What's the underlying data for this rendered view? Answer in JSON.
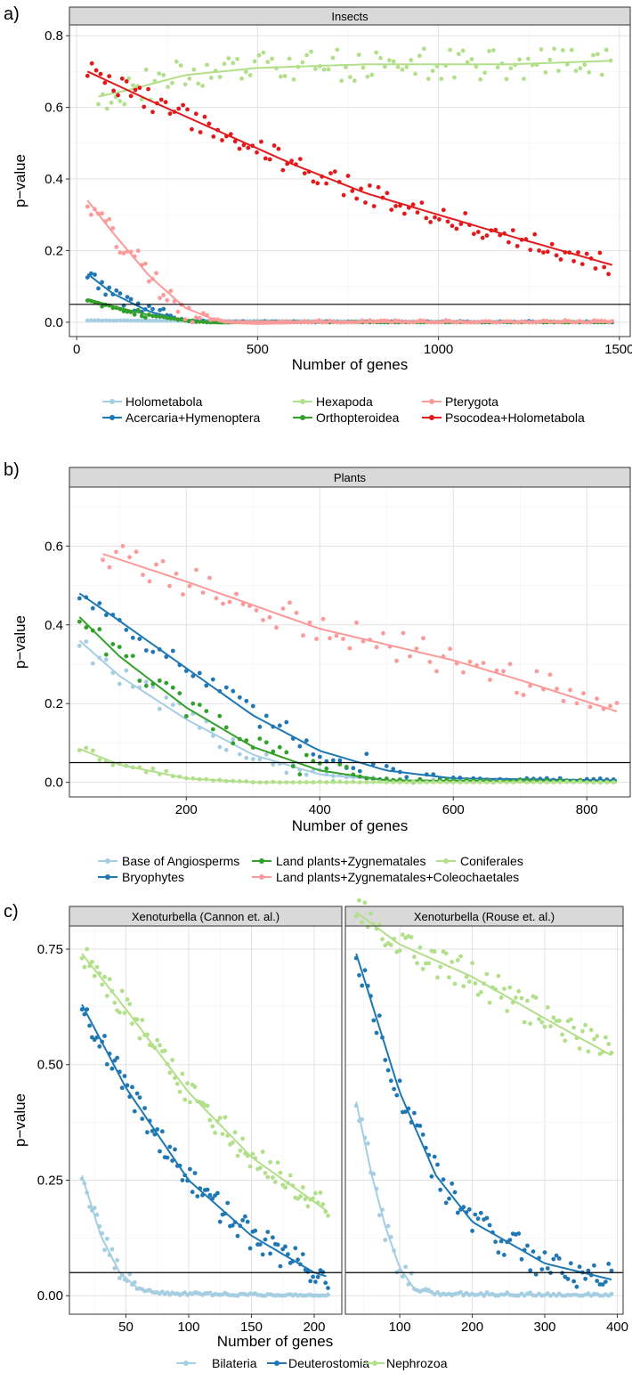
{
  "figure": {
    "panel_a": "a)",
    "panel_b": "b)",
    "panel_c": "c)"
  },
  "colors": {
    "light_blue": "#a6cee3",
    "dark_blue": "#1f78b4",
    "light_green": "#b2df8a",
    "dark_green": "#33a02c",
    "pink": "#fb9a99",
    "red": "#e31a1c",
    "strip": "#d9d9d9",
    "grid": "#ebebeb"
  },
  "chart_data": [
    {
      "id": "insects",
      "type": "scatter",
      "title": "Insects",
      "xlabel": "Number of genes",
      "ylabel": "p−value",
      "xlim": [
        -20,
        1530
      ],
      "ylim": [
        -0.04,
        0.83
      ],
      "xticks": [
        0,
        500,
        1000,
        1500
      ],
      "yticks": [
        0.0,
        0.2,
        0.4,
        0.6,
        0.8
      ],
      "ytick_labels": [
        "0.0",
        "0.2",
        "0.4",
        "0.6",
        "0.8"
      ],
      "hline": 0.05,
      "legend": {
        "position": "bottom",
        "columns": 3,
        "entries": [
          "Holometabola",
          "Acercaria+Hymenoptera",
          "Hexapoda",
          "Orthopteroidea",
          "Pterygota",
          "Psocodea+Holometabola"
        ]
      },
      "series": [
        {
          "name": "Holometabola",
          "color": "#a6cee3",
          "x_start": 30,
          "x_end": 1480,
          "x_step": 10,
          "trend": [
            [
              30,
              0.005
            ],
            [
              1480,
              0.0
            ]
          ],
          "noise": 0.002
        },
        {
          "name": "Acercaria+Hymenoptera",
          "color": "#1f78b4",
          "x_start": 30,
          "x_end": 1480,
          "x_step": 10,
          "trend": [
            [
              30,
              0.135
            ],
            [
              100,
              0.08
            ],
            [
              200,
              0.03
            ],
            [
              300,
              0.005
            ],
            [
              400,
              -0.002
            ],
            [
              500,
              0.0
            ],
            [
              1480,
              0.0
            ]
          ],
          "noise": 0.02
        },
        {
          "name": "Hexapoda",
          "color": "#b2df8a",
          "x_start": 60,
          "x_end": 1480,
          "x_step": 12,
          "trend": [
            [
              60,
              0.63
            ],
            [
              150,
              0.65
            ],
            [
              300,
              0.69
            ],
            [
              500,
              0.71
            ],
            [
              800,
              0.72
            ],
            [
              1200,
              0.72
            ],
            [
              1480,
              0.73
            ]
          ],
          "noise": 0.045
        },
        {
          "name": "Orthopteroidea",
          "color": "#33a02c",
          "x_start": 30,
          "x_end": 1480,
          "x_step": 10,
          "trend": [
            [
              30,
              0.065
            ],
            [
              100,
              0.045
            ],
            [
              200,
              0.02
            ],
            [
              300,
              0.005
            ],
            [
              400,
              -0.004
            ],
            [
              500,
              0.0
            ],
            [
              1480,
              0.0
            ]
          ],
          "noise": 0.01
        },
        {
          "name": "Pterygota",
          "color": "#fb9a99",
          "x_start": 30,
          "x_end": 1480,
          "x_step": 10,
          "trend": [
            [
              30,
              0.34
            ],
            [
              100,
              0.25
            ],
            [
              200,
              0.13
            ],
            [
              300,
              0.04
            ],
            [
              400,
              0.0
            ],
            [
              500,
              -0.005
            ],
            [
              700,
              0.0
            ],
            [
              1480,
              0.0
            ]
          ],
          "noise": 0.04
        },
        {
          "name": "Psocodea+Holometabola",
          "color": "#e31a1c",
          "x_start": 30,
          "x_end": 1480,
          "x_step": 12,
          "trend": [
            [
              30,
              0.7
            ],
            [
              200,
              0.62
            ],
            [
              400,
              0.53
            ],
            [
              600,
              0.44
            ],
            [
              800,
              0.36
            ],
            [
              1000,
              0.3
            ],
            [
              1200,
              0.24
            ],
            [
              1480,
              0.16
            ]
          ],
          "noise": 0.03
        }
      ]
    },
    {
      "id": "plants",
      "type": "scatter",
      "title": "Plants",
      "xlabel": "Number of genes",
      "ylabel": "p−value",
      "xlim": [
        25,
        865
      ],
      "ylim": [
        -0.037,
        0.75
      ],
      "xticks": [
        200,
        400,
        600,
        800
      ],
      "yticks": [
        0.0,
        0.2,
        0.4,
        0.6
      ],
      "ytick_labels": [
        "0.0",
        "0.2",
        "0.4",
        "0.6"
      ],
      "hline": 0.05,
      "legend": {
        "position": "bottom",
        "columns": 3,
        "entries": [
          "Base of Angiosperms",
          "Bryophytes",
          "Land plants+Zygnematales",
          "Land plants+Zygnematales+Coleochaetales",
          "Coniferales"
        ]
      },
      "series": [
        {
          "name": "Base of Angiosperms",
          "color": "#a6cee3",
          "x_start": 40,
          "x_end": 845,
          "x_step": 10,
          "trend": [
            [
              40,
              0.36
            ],
            [
              100,
              0.27
            ],
            [
              200,
              0.16
            ],
            [
              300,
              0.07
            ],
            [
              400,
              0.02
            ],
            [
              500,
              0.005
            ],
            [
              845,
              0.0
            ]
          ],
          "noise": 0.03
        },
        {
          "name": "Bryophytes",
          "color": "#1f78b4",
          "x_start": 40,
          "x_end": 845,
          "x_step": 10,
          "trend": [
            [
              40,
              0.48
            ],
            [
              100,
              0.41
            ],
            [
              200,
              0.29
            ],
            [
              300,
              0.17
            ],
            [
              400,
              0.08
            ],
            [
              500,
              0.03
            ],
            [
              600,
              0.01
            ],
            [
              845,
              0.005
            ]
          ],
          "noise": 0.03
        },
        {
          "name": "Land plants+Zygnematales",
          "color": "#33a02c",
          "x_start": 40,
          "x_end": 845,
          "x_step": 10,
          "trend": [
            [
              40,
              0.42
            ],
            [
              100,
              0.32
            ],
            [
              200,
              0.19
            ],
            [
              300,
              0.09
            ],
            [
              400,
              0.03
            ],
            [
              500,
              0.005
            ],
            [
              845,
              0.002
            ]
          ],
          "noise": 0.03
        },
        {
          "name": "Land plants+Zygnematales+Coleochaetales",
          "color": "#fb9a99",
          "x_start": 75,
          "x_end": 845,
          "x_step": 10,
          "trend": [
            [
              75,
              0.58
            ],
            [
              200,
              0.51
            ],
            [
              300,
              0.45
            ],
            [
              400,
              0.39
            ],
            [
              500,
              0.35
            ],
            [
              600,
              0.31
            ],
            [
              700,
              0.26
            ],
            [
              845,
              0.18
            ]
          ],
          "noise": 0.04
        },
        {
          "name": "Coniferales",
          "color": "#b2df8a",
          "x_start": 40,
          "x_end": 845,
          "x_step": 10,
          "trend": [
            [
              40,
              0.085
            ],
            [
              100,
              0.045
            ],
            [
              200,
              0.01
            ],
            [
              300,
              0.0
            ],
            [
              845,
              0.0
            ]
          ],
          "noise": 0.01
        }
      ]
    },
    {
      "id": "xeno-cannon",
      "type": "scatter",
      "title": "Xenoturbella (Cannon et. al.)",
      "xlabel": "Number of genes",
      "ylabel": "p−value",
      "xlim": [
        5,
        222
      ],
      "ylim": [
        -0.04,
        0.8
      ],
      "xticks": [
        50,
        100,
        150,
        200
      ],
      "yticks": [
        0.0,
        0.25,
        0.5,
        0.75
      ],
      "ytick_labels": [
        "0.00",
        "0.25",
        "0.50",
        "0.75"
      ],
      "hline": 0.05,
      "series": [
        {
          "name": "Bilateria",
          "color": "#a6cee3",
          "x_start": 15,
          "x_end": 212,
          "x_step": 2,
          "trend": [
            [
              15,
              0.26
            ],
            [
              30,
              0.13
            ],
            [
              45,
              0.05
            ],
            [
              60,
              0.015
            ],
            [
              80,
              0.005
            ],
            [
              212,
              0.0
            ]
          ],
          "noise": 0.02
        },
        {
          "name": "Deuterostomia",
          "color": "#1f78b4",
          "x_start": 15,
          "x_end": 212,
          "x_step": 2,
          "trend": [
            [
              15,
              0.63
            ],
            [
              50,
              0.45
            ],
            [
              100,
              0.25
            ],
            [
              150,
              0.13
            ],
            [
              200,
              0.05
            ],
            [
              212,
              0.04
            ]
          ],
          "noise": 0.03
        },
        {
          "name": "Nephrozoa",
          "color": "#b2df8a",
          "x_start": 15,
          "x_end": 212,
          "x_step": 2,
          "trend": [
            [
              15,
              0.74
            ],
            [
              50,
              0.62
            ],
            [
              100,
              0.44
            ],
            [
              150,
              0.3
            ],
            [
              212,
              0.18
            ]
          ],
          "noise": 0.03
        }
      ]
    },
    {
      "id": "xeno-rouse",
      "type": "scatter",
      "title": "Xenoturbella (Rouse et. al.)",
      "xlabel": "Number of genes",
      "ylabel": "",
      "xlim": [
        25,
        408
      ],
      "ylim": [
        -0.04,
        0.8
      ],
      "xticks": [
        100,
        200,
        300,
        400
      ],
      "yticks": [
        0.0,
        0.25,
        0.5,
        0.75
      ],
      "hline": 0.05,
      "series": [
        {
          "name": "Bilateria",
          "color": "#a6cee3",
          "x_start": 40,
          "x_end": 392,
          "x_step": 4,
          "trend": [
            [
              40,
              0.42
            ],
            [
              60,
              0.27
            ],
            [
              80,
              0.15
            ],
            [
              100,
              0.06
            ],
            [
              120,
              0.015
            ],
            [
              150,
              0.005
            ],
            [
              392,
              0.0
            ]
          ],
          "noise": 0.03
        },
        {
          "name": "Deuterostomia",
          "color": "#1f78b4",
          "x_start": 40,
          "x_end": 392,
          "x_step": 4,
          "trend": [
            [
              40,
              0.74
            ],
            [
              100,
              0.44
            ],
            [
              150,
              0.26
            ],
            [
              200,
              0.16
            ],
            [
              300,
              0.07
            ],
            [
              392,
              0.035
            ]
          ],
          "noise": 0.035
        },
        {
          "name": "Nephrozoa",
          "color": "#b2df8a",
          "x_start": 40,
          "x_end": 392,
          "x_step": 4,
          "trend": [
            [
              40,
              0.83
            ],
            [
              100,
              0.76
            ],
            [
              200,
              0.69
            ],
            [
              300,
              0.6
            ],
            [
              392,
              0.52
            ]
          ],
          "noise": 0.035
        }
      ]
    }
  ],
  "legend_c": {
    "entries": [
      "Bilateria",
      "Deuterostomia",
      "Nephrozoa"
    ]
  }
}
